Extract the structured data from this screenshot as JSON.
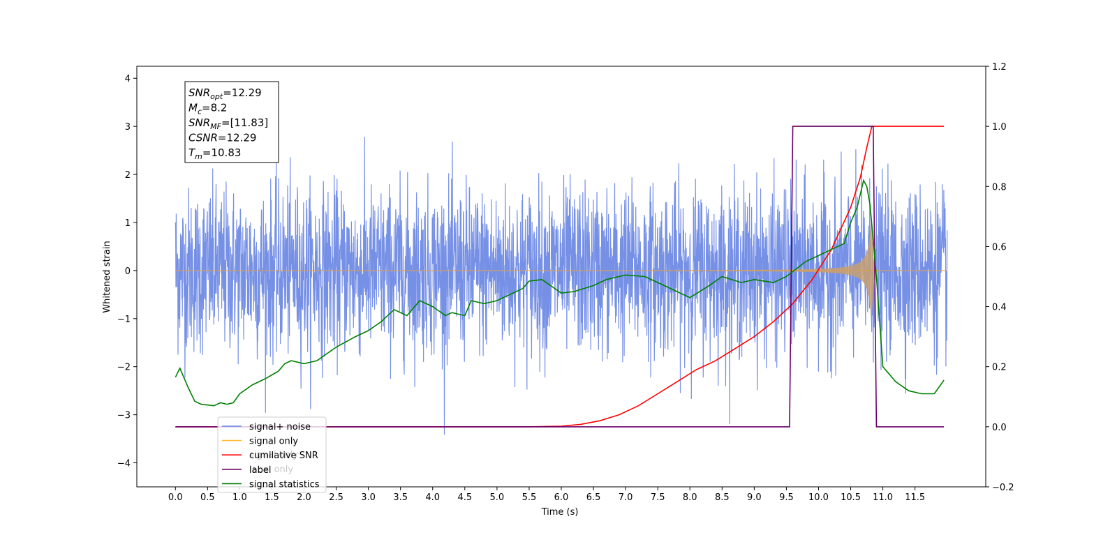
{
  "chart_data": {
    "type": "line",
    "xlabel": "Time (s)",
    "ylabel": "Whitened strain",
    "xlim": [
      -0.6,
      12.6
    ],
    "ylim": [
      -4.5,
      4.25
    ],
    "ylim_right": [
      -0.2,
      1.2
    ],
    "x_ticks": [
      "0.0",
      "0.5",
      "1.0",
      "1.5",
      "2.0",
      "2.5",
      "3.0",
      "3.5",
      "4.0",
      "4.5",
      "5.0",
      "5.5",
      "6.0",
      "6.5",
      "7.0",
      "7.5",
      "8.0",
      "8.5",
      "9.0",
      "9.5",
      "10.0",
      "10.5",
      "11.0",
      "11.5"
    ],
    "y_ticks": [
      "−4",
      "−3",
      "−2",
      "−1",
      "0",
      "1",
      "2",
      "3",
      "4"
    ],
    "y_ticks_right": [
      "−0.2",
      "0.0",
      "0.2",
      "0.4",
      "0.6",
      "0.8",
      "1.0",
      "1.2"
    ],
    "annotation": {
      "lines": [
        {
          "sym": "SNR",
          "sub": "opt",
          "value": "=12.29"
        },
        {
          "sym": "M",
          "sub": "c",
          "value": "=8.2"
        },
        {
          "sym": "SNR",
          "sub": "MF",
          "value": "=[11.83]"
        },
        {
          "sym": "CSNR",
          "sub": "",
          "value": "=12.29"
        },
        {
          "sym": "T",
          "sub": "m",
          "value": "=10.83"
        }
      ]
    },
    "legend": {
      "placement": "lower-left",
      "entries": [
        {
          "label": "signal+ noise",
          "color": "#6a87e4"
        },
        {
          "label": "signal only",
          "color": "#ffb833"
        },
        {
          "label": "cumilative SNR",
          "color": "#ff0000"
        },
        {
          "label": "label",
          "color": "#6a006a"
        },
        {
          "label": "signal statistics",
          "color": "#007f00"
        }
      ],
      "background_labels": [
        "signal only",
        "label only"
      ]
    },
    "series": [
      {
        "name": "signal+ noise",
        "axis": "left",
        "color": "#6a87e4",
        "kind": "noise",
        "x_range": [
          0.0,
          12.0
        ],
        "noise_sigma": 0.85
      },
      {
        "name": "signal only",
        "axis": "left",
        "color": "#c8a070",
        "kind": "chirp",
        "x_range": [
          0.0,
          12.0
        ],
        "merger_time": 10.83
      },
      {
        "name": "cumilative SNR",
        "axis": "right",
        "color": "#ff0000",
        "x": [
          0.0,
          5.5,
          6.0,
          6.3,
          6.6,
          6.9,
          7.2,
          7.5,
          7.8,
          8.1,
          8.4,
          8.7,
          9.0,
          9.3,
          9.6,
          9.9,
          10.2,
          10.5,
          10.65,
          10.75,
          10.83,
          11.95
        ],
        "values": [
          0.0,
          0.0,
          0.002,
          0.008,
          0.02,
          0.04,
          0.07,
          0.11,
          0.15,
          0.19,
          0.22,
          0.26,
          0.3,
          0.35,
          0.41,
          0.49,
          0.59,
          0.73,
          0.83,
          0.93,
          1.0,
          1.0
        ]
      },
      {
        "name": "label",
        "axis": "right",
        "color": "#6a006a",
        "x": [
          0.0,
          9.55,
          9.6,
          10.85,
          10.9,
          11.95
        ],
        "values": [
          0.0,
          0.0,
          1.0,
          1.0,
          0.0,
          0.0
        ]
      },
      {
        "name": "signal statistics",
        "axis": "right",
        "color": "#007f00",
        "x": [
          0.0,
          0.07,
          0.2,
          0.3,
          0.4,
          0.6,
          0.7,
          0.8,
          0.9,
          1.0,
          1.2,
          1.4,
          1.6,
          1.7,
          1.8,
          2.0,
          2.2,
          2.5,
          2.8,
          3.0,
          3.2,
          3.4,
          3.6,
          3.8,
          4.0,
          4.2,
          4.3,
          4.5,
          4.6,
          4.8,
          5.0,
          5.2,
          5.4,
          5.5,
          5.7,
          6.0,
          6.2,
          6.5,
          6.7,
          7.0,
          7.3,
          7.5,
          7.8,
          8.0,
          8.3,
          8.5,
          8.8,
          9.0,
          9.3,
          9.5,
          9.8,
          10.0,
          10.2,
          10.4,
          10.5,
          10.6,
          10.7,
          10.75,
          10.8,
          10.9,
          11.0,
          11.2,
          11.4,
          11.6,
          11.8,
          11.95
        ],
        "values": [
          0.165,
          0.195,
          0.13,
          0.085,
          0.075,
          0.07,
          0.08,
          0.075,
          0.08,
          0.11,
          0.14,
          0.16,
          0.185,
          0.21,
          0.22,
          0.21,
          0.22,
          0.265,
          0.3,
          0.32,
          0.35,
          0.39,
          0.37,
          0.42,
          0.4,
          0.37,
          0.38,
          0.37,
          0.42,
          0.41,
          0.42,
          0.44,
          0.46,
          0.485,
          0.49,
          0.445,
          0.45,
          0.47,
          0.49,
          0.505,
          0.5,
          0.48,
          0.45,
          0.43,
          0.47,
          0.5,
          0.48,
          0.49,
          0.48,
          0.5,
          0.55,
          0.57,
          0.59,
          0.61,
          0.68,
          0.73,
          0.82,
          0.8,
          0.74,
          0.5,
          0.2,
          0.15,
          0.12,
          0.11,
          0.11,
          0.155
        ]
      }
    ]
  }
}
